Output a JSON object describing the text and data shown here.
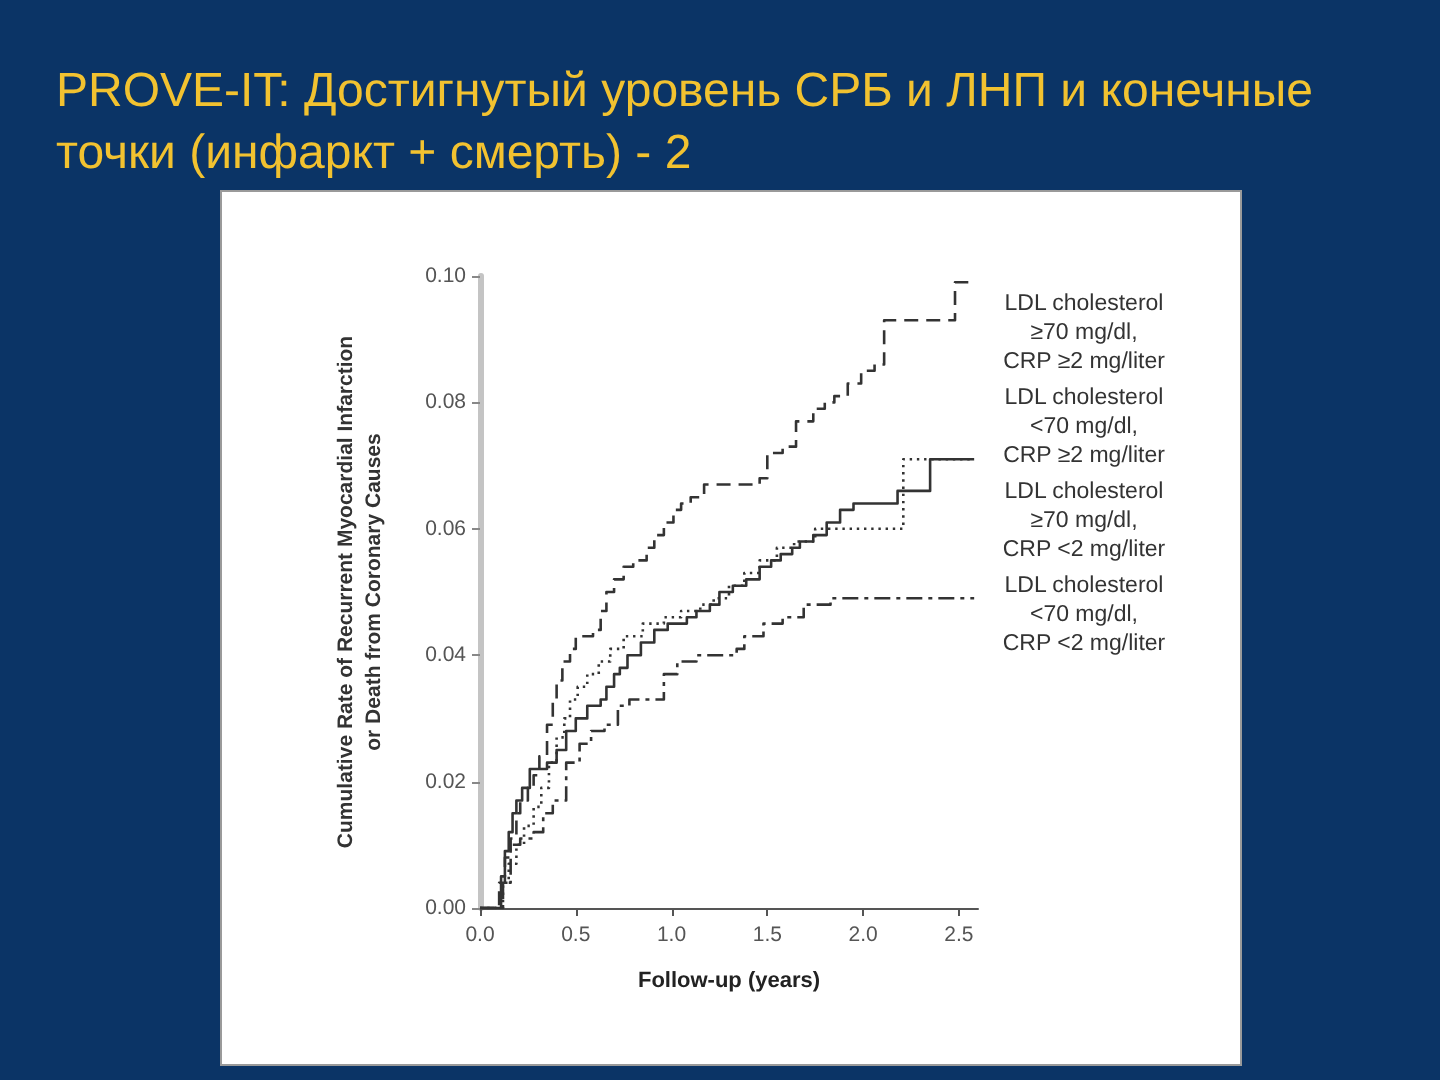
{
  "chart_data": {
    "type": "step",
    "title": "PROVE-IT: Достигнутый уровень СРБ и ЛНП и конечные точки (инфаркт + смерть) - 2",
    "xlabel": "Follow-up (years)",
    "ylabel": "Cumulative Rate of Recurrent Myocardial Infarction\nor Death from Coronary Causes",
    "xlim": [
      0,
      2.6
    ],
    "xticks": [
      {
        "value": 0,
        "label": "0.0"
      },
      0.5,
      {
        "value": 1,
        "label": "1.0"
      },
      1.5,
      {
        "value": 2,
        "label": "2.0"
      },
      2.5
    ],
    "ylim": [
      0,
      0.1
    ],
    "yticks": [
      {
        "value": 0,
        "label": "0.00"
      },
      0.02,
      0.04,
      0.06,
      0.08,
      {
        "value": 0.1,
        "label": "0.10"
      }
    ],
    "grid": false,
    "legend": "right",
    "marker": "none",
    "series": [
      {
        "name": "LDL cholesterol\n≥70 mg/dl,\nCRP ≥2 mg/liter",
        "color": "#333333",
        "line_style": "dashed",
        "x": [
          0,
          0.09,
          0.1,
          0.13,
          0.16,
          0.19,
          0.21,
          0.25,
          0.28,
          0.31,
          0.35,
          0.38,
          0.4,
          0.43,
          0.47,
          0.5,
          0.59,
          0.63,
          0.66,
          0.7,
          0.75,
          0.8,
          0.87,
          0.91,
          0.96,
          1.01,
          1.05,
          1.1,
          1.17,
          1.46,
          1.5,
          1.58,
          1.65,
          1.74,
          1.8,
          1.85,
          1.92,
          1.99,
          2.06,
          2.11,
          2.48,
          2.58
        ],
        "values": [
          0,
          0,
          0.004,
          0.008,
          0.011,
          0.015,
          0.017,
          0.019,
          0.021,
          0.024,
          0.029,
          0.033,
          0.036,
          0.039,
          0.041,
          0.043,
          0.044,
          0.047,
          0.05,
          0.052,
          0.054,
          0.055,
          0.057,
          0.059,
          0.061,
          0.063,
          0.064,
          0.065,
          0.067,
          0.068,
          0.072,
          0.073,
          0.077,
          0.079,
          0.08,
          0.081,
          0.083,
          0.085,
          0.086,
          0.093,
          0.099,
          0.099
        ]
      },
      {
        "name": "LDL cholesterol\n<70 mg/dl,\nCRP ≥2 mg/liter",
        "color": "#333333",
        "line_style": "dotted",
        "x": [
          0,
          0.09,
          0.12,
          0.15,
          0.19,
          0.23,
          0.28,
          0.32,
          0.36,
          0.4,
          0.44,
          0.47,
          0.51,
          0.56,
          0.62,
          0.68,
          0.75,
          0.85,
          0.96,
          1.05,
          1.15,
          1.22,
          1.3,
          1.38,
          1.46,
          1.55,
          1.64,
          1.75,
          2.21,
          2.58
        ],
        "values": [
          0,
          0,
          0.004,
          0.007,
          0.01,
          0.013,
          0.016,
          0.019,
          0.023,
          0.027,
          0.03,
          0.033,
          0.035,
          0.037,
          0.039,
          0.041,
          0.043,
          0.045,
          0.046,
          0.047,
          0.048,
          0.049,
          0.051,
          0.053,
          0.055,
          0.057,
          0.058,
          0.06,
          0.071,
          0.071
        ]
      },
      {
        "name": "LDL cholesterol\n≥70 mg/dl,\nCRP <2 mg/liter",
        "color": "#333333",
        "line_style": "solid",
        "x": [
          0,
          0.09,
          0.11,
          0.13,
          0.15,
          0.17,
          0.19,
          0.22,
          0.26,
          0.35,
          0.4,
          0.45,
          0.5,
          0.56,
          0.63,
          0.66,
          0.7,
          0.73,
          0.77,
          0.84,
          0.91,
          0.98,
          1.08,
          1.13,
          1.2,
          1.25,
          1.32,
          1.39,
          1.46,
          1.52,
          1.57,
          1.63,
          1.67,
          1.74,
          1.81,
          1.88,
          1.95,
          2.18,
          2.35,
          2.58
        ],
        "values": [
          0,
          0,
          0.005,
          0.009,
          0.012,
          0.015,
          0.017,
          0.019,
          0.022,
          0.023,
          0.025,
          0.028,
          0.03,
          0.032,
          0.033,
          0.035,
          0.037,
          0.038,
          0.04,
          0.042,
          0.044,
          0.045,
          0.046,
          0.047,
          0.048,
          0.05,
          0.051,
          0.052,
          0.054,
          0.055,
          0.056,
          0.057,
          0.058,
          0.059,
          0.061,
          0.063,
          0.064,
          0.066,
          0.071,
          0.071
        ]
      },
      {
        "name": "LDL cholesterol\n<70 mg/dl,\nCRP <2 mg/liter",
        "color": "#333333",
        "line_style": "dashdot",
        "x": [
          0,
          0.09,
          0.12,
          0.16,
          0.21,
          0.28,
          0.33,
          0.38,
          0.45,
          0.52,
          0.58,
          0.65,
          0.72,
          0.78,
          0.91,
          0.96,
          1.03,
          1.13,
          1.34,
          1.38,
          1.48,
          1.58,
          1.69,
          1.79,
          1.83,
          2.58
        ],
        "values": [
          0,
          0,
          0.004,
          0.01,
          0.011,
          0.012,
          0.015,
          0.017,
          0.023,
          0.026,
          0.028,
          0.029,
          0.032,
          0.033,
          0.033,
          0.037,
          0.039,
          0.04,
          0.041,
          0.043,
          0.045,
          0.046,
          0.048,
          0.048,
          0.049,
          0.049
        ]
      }
    ]
  }
}
